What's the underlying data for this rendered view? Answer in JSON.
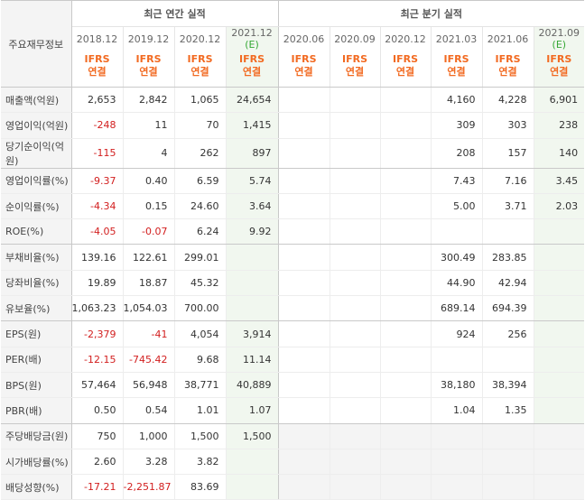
{
  "header": {
    "corner_label": "주요재무정보",
    "annual_title": "최근 연간 실적",
    "quarter_title": "최근 분기 실적",
    "periods": [
      "2018.12",
      "2019.12",
      "2020.12",
      "2021.12",
      "2020.06",
      "2020.09",
      "2020.12",
      "2021.03",
      "2021.06",
      "2021.09"
    ],
    "estimate_mark": "(E)",
    "ifrs_top": "IFRS",
    "ifrs_bottom": "연결"
  },
  "rows": [
    {
      "label": "매출액(억원)",
      "values": [
        "2,653",
        "2,842",
        "1,065",
        "24,654",
        "",
        "",
        "",
        "4,160",
        "4,228",
        "6,901"
      ]
    },
    {
      "label": "영업이익(억원)",
      "values": [
        "-248",
        "11",
        "70",
        "1,415",
        "",
        "",
        "",
        "309",
        "303",
        "238"
      ]
    },
    {
      "label": "당기순이익(억원)",
      "values": [
        "-115",
        "4",
        "262",
        "897",
        "",
        "",
        "",
        "208",
        "157",
        "140"
      ]
    },
    {
      "label": "영업이익률(%)",
      "values": [
        "-9.37",
        "0.40",
        "6.59",
        "5.74",
        "",
        "",
        "",
        "7.43",
        "7.16",
        "3.45"
      ]
    },
    {
      "label": "순이익률(%)",
      "values": [
        "-4.34",
        "0.15",
        "24.60",
        "3.64",
        "",
        "",
        "",
        "5.00",
        "3.71",
        "2.03"
      ]
    },
    {
      "label": "ROE(%)",
      "values": [
        "-4.05",
        "-0.07",
        "6.24",
        "9.92",
        "",
        "",
        "",
        "",
        "",
        ""
      ]
    },
    {
      "label": "부채비율(%)",
      "values": [
        "139.16",
        "122.61",
        "299.01",
        "",
        "",
        "",
        "",
        "300.49",
        "283.85",
        ""
      ]
    },
    {
      "label": "당좌비율(%)",
      "values": [
        "19.89",
        "18.87",
        "45.32",
        "",
        "",
        "",
        "",
        "44.90",
        "42.94",
        ""
      ]
    },
    {
      "label": "유보율(%)",
      "values": [
        "1,063.23",
        "1,054.03",
        "700.00",
        "",
        "",
        "",
        "",
        "689.14",
        "694.39",
        ""
      ]
    },
    {
      "label": "EPS(원)",
      "values": [
        "-2,379",
        "-41",
        "4,054",
        "3,914",
        "",
        "",
        "",
        "924",
        "256",
        ""
      ]
    },
    {
      "label": "PER(배)",
      "values": [
        "-12.15",
        "-745.42",
        "9.68",
        "11.14",
        "",
        "",
        "",
        "",
        "",
        ""
      ]
    },
    {
      "label": "BPS(원)",
      "values": [
        "57,464",
        "56,948",
        "38,771",
        "40,889",
        "",
        "",
        "",
        "38,180",
        "38,394",
        ""
      ]
    },
    {
      "label": "PBR(배)",
      "values": [
        "0.50",
        "0.54",
        "1.01",
        "1.07",
        "",
        "",
        "",
        "1.04",
        "1.35",
        ""
      ]
    },
    {
      "label": "주당배당금(원)",
      "values": [
        "750",
        "1,000",
        "1,500",
        "1,500",
        "",
        "",
        "",
        "",
        "",
        ""
      ]
    },
    {
      "label": "시가배당률(%)",
      "values": [
        "2.60",
        "3.28",
        "3.82",
        "",
        "",
        "",
        "",
        "",
        "",
        ""
      ]
    },
    {
      "label": "배당성향(%)",
      "values": [
        "-17.21",
        "-2,251.87",
        "83.69",
        "",
        "",
        "",
        "",
        "",
        "",
        ""
      ]
    }
  ],
  "colors": {
    "negative": "#d21e1e",
    "ifrs": "#f26a21",
    "estimate": "#35a835",
    "estimate_bg": "#f1f7ef",
    "label_bg": "#f4f4f4"
  }
}
